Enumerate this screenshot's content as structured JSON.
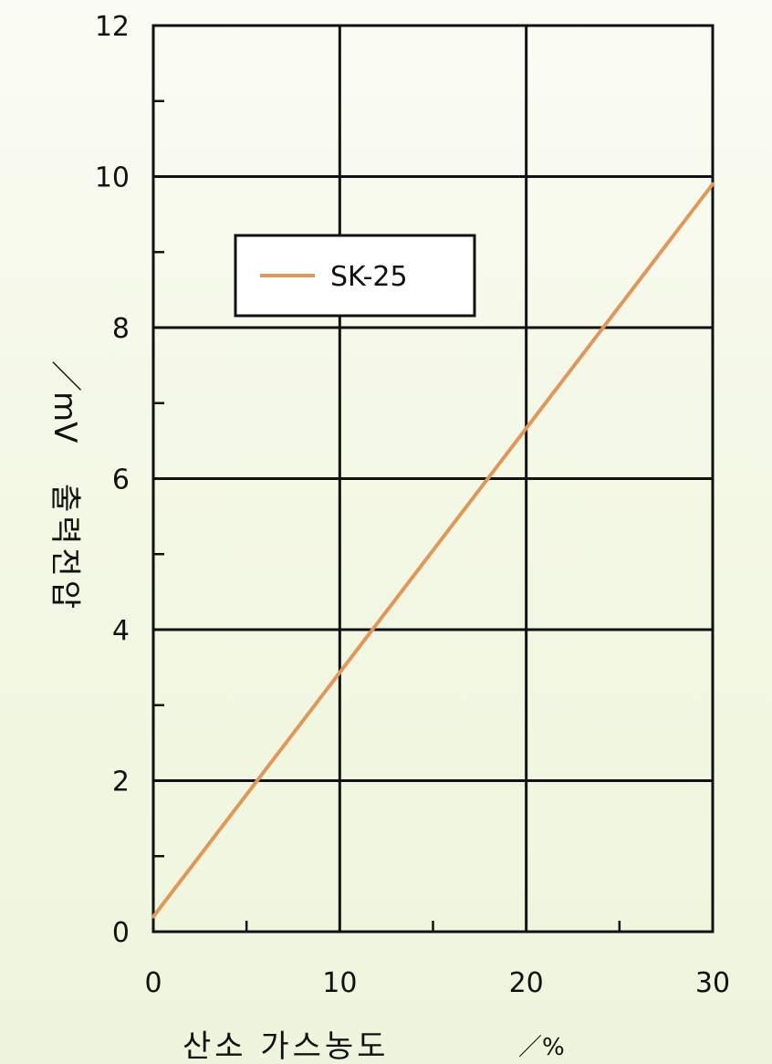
{
  "chart_data": {
    "type": "line",
    "xlabel": "산소 가스농도",
    "xunit": "／%",
    "ylabel": "출력전압",
    "yunit": "／mV",
    "xlim": [
      0,
      30
    ],
    "ylim": [
      0,
      12
    ],
    "xticks": [
      0,
      10,
      20,
      30
    ],
    "yticks": [
      0,
      2,
      4,
      6,
      8,
      10,
      12
    ],
    "x_minor_step": 5,
    "y_minor_step": 1,
    "grid": true,
    "legend_position": "upper-left",
    "series": [
      {
        "name": "SK-25",
        "color": "#e0975a",
        "x": [
          0,
          30
        ],
        "y": [
          0.2,
          9.9
        ]
      }
    ]
  }
}
